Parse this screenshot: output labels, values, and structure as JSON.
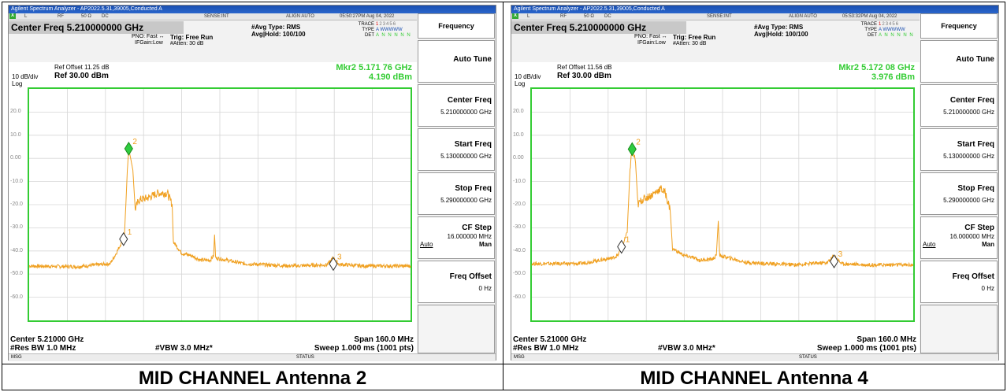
{
  "panels": [
    {
      "title": "Agilent Spectrum Analyzer - AP2022.5.31,39005,Conducted A",
      "strip": {
        "l": "L",
        "rf": "RF",
        "ohm": "50 Ω",
        "dc": "DC",
        "sense": "SENSE:INT",
        "align": "ALIGN AUTO",
        "time": "05:50:27PM Aug 04, 2022",
        "x": "X"
      },
      "center_freq": "Center Freq 5.210000000 GHz",
      "pno": "PNO: Fast",
      "ifgain": "IFGain:Low",
      "trig": "Trig: Free Run",
      "atten": "#Atten: 30 dB",
      "avg_type": "#Avg Type: RMS",
      "avg_hold": "Avg|Hold: 100/100",
      "trace_lbl": "TRACE",
      "type_lbl": "TYPE",
      "det_lbl": "DET",
      "trace_nums": [
        "1",
        "2",
        "3",
        "4",
        "5",
        "6"
      ],
      "type_val": "A WWWWW",
      "det_val": "A N N N N N",
      "ref_offset": "Ref Offset 11.25 dB",
      "ref_level": "Ref 30.00 dBm",
      "db_div": "10 dB/div",
      "log": "Log",
      "marker_freq": "Mkr2 5.171 76 GHz",
      "marker_amp": "4.190 dBm",
      "y_ticks": [
        "20.0",
        "10.0",
        "0.00",
        "-10.0",
        "-20.0",
        "-30.0",
        "-40.0",
        "-50.0",
        "-60.0"
      ],
      "marker_labels": [
        "1",
        "2",
        "3"
      ],
      "center_label": "Center 5.21000 GHz",
      "span_label": "Span 160.0 MHz",
      "rbw": "#Res BW 1.0 MHz",
      "vbw": "#VBW 3.0 MHz*",
      "sweep": "Sweep  1.000 ms (1001 pts)",
      "msg": "MSG",
      "status": "STATUS",
      "softkeys": {
        "frequency": "Frequency",
        "auto_tune": "Auto Tune",
        "center": "Center Freq",
        "center_val": "5.210000000 GHz",
        "start": "Start Freq",
        "start_val": "5.130000000 GHz",
        "stop": "Stop Freq",
        "stop_val": "5.290000000 GHz",
        "cf_step": "CF Step",
        "cf_step_val": "16.000000 MHz",
        "auto": "Auto",
        "man": "Man",
        "freq_offset": "Freq Offset",
        "freq_offset_val": "0 Hz"
      },
      "trace_color": "#f0a020",
      "caption": "MID CHANNEL Antenna 2"
    },
    {
      "title": "Agilent Spectrum Analyzer - AP2022.5.31,39005,Conducted A",
      "strip": {
        "l": "L",
        "rf": "RF",
        "ohm": "50 Ω",
        "dc": "DC",
        "sense": "SENSE:INT",
        "align": "ALIGN AUTO",
        "time": "05:53:32PM Aug 04, 2022",
        "x": "X"
      },
      "center_freq": "Center Freq 5.210000000 GHz",
      "pno": "PNO: Fast",
      "ifgain": "IFGain:Low",
      "trig": "Trig: Free Run",
      "atten": "#Atten: 30 dB",
      "avg_type": "#Avg Type: RMS",
      "avg_hold": "Avg|Hold: 100/100",
      "trace_lbl": "TRACE",
      "type_lbl": "TYPE",
      "det_lbl": "DET",
      "trace_nums": [
        "1",
        "2",
        "3",
        "4",
        "5",
        "6"
      ],
      "type_val": "A WWWWW",
      "det_val": "A N N N N N",
      "ref_offset": "Ref Offset 11.56 dB",
      "ref_level": "Ref 30.00 dBm",
      "db_div": "10 dB/div",
      "log": "Log",
      "marker_freq": "Mkr2 5.172 08 GHz",
      "marker_amp": "3.976 dBm",
      "y_ticks": [
        "20.0",
        "10.0",
        "0.00",
        "-10.0",
        "-20.0",
        "-30.0",
        "-40.0",
        "-50.0",
        "-60.0"
      ],
      "marker_labels": [
        "1",
        "2",
        "3"
      ],
      "center_label": "Center 5.21000 GHz",
      "span_label": "Span 160.0 MHz",
      "rbw": "#Res BW 1.0 MHz",
      "vbw": "#VBW 3.0 MHz*",
      "sweep": "Sweep  1.000 ms (1001 pts)",
      "msg": "MSG",
      "status": "STATUS",
      "softkeys": {
        "frequency": "Frequency",
        "auto_tune": "Auto Tune",
        "center": "Center Freq",
        "center_val": "5.210000000 GHz",
        "start": "Start Freq",
        "start_val": "5.130000000 GHz",
        "stop": "Stop Freq",
        "stop_val": "5.290000000 GHz",
        "cf_step": "CF Step",
        "cf_step_val": "16.000000 MHz",
        "auto": "Auto",
        "man": "Man",
        "freq_offset": "Freq Offset",
        "freq_offset_val": "0 Hz"
      },
      "trace_color": "#f0a020",
      "caption": "MID CHANNEL Antenna 4"
    }
  ],
  "spectra": [
    {
      "center_ghz": 5.21,
      "span_mhz": 160,
      "ref_dbm": 30,
      "db_per_div": 10,
      "markers": [
        {
          "id": "1",
          "freq_ghz": 5.1696,
          "dbm": -34.9
        },
        {
          "id": "2",
          "freq_ghz": 5.17176,
          "dbm": 4.19
        },
        {
          "id": "3",
          "freq_ghz": 5.2576,
          "dbm": -45.6
        }
      ],
      "trace": [
        [
          5.13,
          -46.5
        ],
        [
          5.15,
          -46.8
        ],
        [
          5.164,
          -45.5
        ],
        [
          5.166,
          -42
        ],
        [
          5.168,
          -38
        ],
        [
          5.17,
          -33
        ],
        [
          5.1712,
          -5
        ],
        [
          5.1718,
          4.2
        ],
        [
          5.1735,
          -5
        ],
        [
          5.1745,
          -22
        ],
        [
          5.176,
          -18
        ],
        [
          5.18,
          -17
        ],
        [
          5.184,
          -15
        ],
        [
          5.188,
          -15
        ],
        [
          5.19,
          -20
        ],
        [
          5.1905,
          -36
        ],
        [
          5.194,
          -41
        ],
        [
          5.198,
          -42
        ],
        [
          5.2,
          -43
        ],
        [
          5.202,
          -44
        ],
        [
          5.206,
          -44
        ],
        [
          5.2074,
          -42
        ],
        [
          5.2078,
          -33
        ],
        [
          5.2082,
          -43
        ],
        [
          5.22,
          -45.5
        ],
        [
          5.24,
          -46.5
        ],
        [
          5.255,
          -46
        ],
        [
          5.2576,
          -43
        ],
        [
          5.26,
          -45.8
        ],
        [
          5.27,
          -46.5
        ],
        [
          5.29,
          -46.5
        ]
      ]
    },
    {
      "center_ghz": 5.21,
      "span_mhz": 160,
      "ref_dbm": 30,
      "db_per_div": 10,
      "markers": [
        {
          "id": "1",
          "freq_ghz": 5.1676,
          "dbm": -38.2
        },
        {
          "id": "2",
          "freq_ghz": 5.17208,
          "dbm": 3.98
        },
        {
          "id": "3",
          "freq_ghz": 5.2568,
          "dbm": -44.5
        }
      ],
      "trace": [
        [
          5.13,
          -45.5
        ],
        [
          5.15,
          -45.5
        ],
        [
          5.164,
          -43
        ],
        [
          5.166,
          -42
        ],
        [
          5.168,
          -38
        ],
        [
          5.17,
          -32
        ],
        [
          5.1712,
          -4
        ],
        [
          5.1721,
          4.0
        ],
        [
          5.1735,
          -2
        ],
        [
          5.1745,
          -20
        ],
        [
          5.176,
          -18
        ],
        [
          5.18,
          -16
        ],
        [
          5.184,
          -13
        ],
        [
          5.186,
          -15
        ],
        [
          5.188,
          -22
        ],
        [
          5.189,
          -39
        ],
        [
          5.194,
          -42
        ],
        [
          5.198,
          -43
        ],
        [
          5.2,
          -44
        ],
        [
          5.206,
          -43.5
        ],
        [
          5.2074,
          -42
        ],
        [
          5.2082,
          -27
        ],
        [
          5.2088,
          -42
        ],
        [
          5.22,
          -45
        ],
        [
          5.24,
          -46
        ],
        [
          5.254,
          -45
        ],
        [
          5.2568,
          -42
        ],
        [
          5.26,
          -45.5
        ],
        [
          5.27,
          -46
        ],
        [
          5.29,
          -46
        ]
      ]
    }
  ]
}
